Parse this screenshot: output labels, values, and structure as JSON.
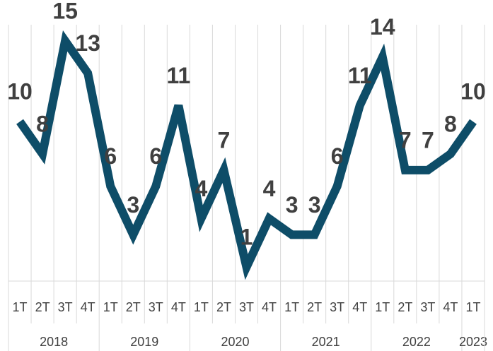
{
  "chart_data": {
    "type": "line",
    "groups": [
      {
        "name": "2018",
        "categories": [
          "1T",
          "2T",
          "3T",
          "4T"
        ]
      },
      {
        "name": "2019",
        "categories": [
          "1T",
          "2T",
          "3T",
          "4T"
        ]
      },
      {
        "name": "2020",
        "categories": [
          "1T",
          "2T",
          "3T",
          "4T"
        ]
      },
      {
        "name": "2021",
        "categories": [
          "1T",
          "2T",
          "3T",
          "4T"
        ]
      },
      {
        "name": "2022",
        "categories": [
          "1T",
          "2T",
          "3T",
          "4T"
        ]
      },
      {
        "name": "2023",
        "categories": [
          "1T"
        ]
      }
    ],
    "values": [
      10,
      8,
      15,
      13,
      6,
      3,
      6,
      11,
      4,
      7,
      1,
      4,
      3,
      3,
      6,
      11,
      14,
      7,
      7,
      8,
      10
    ],
    "color": "#0e4d68",
    "ylim": [
      0,
      16
    ],
    "grid": true
  }
}
